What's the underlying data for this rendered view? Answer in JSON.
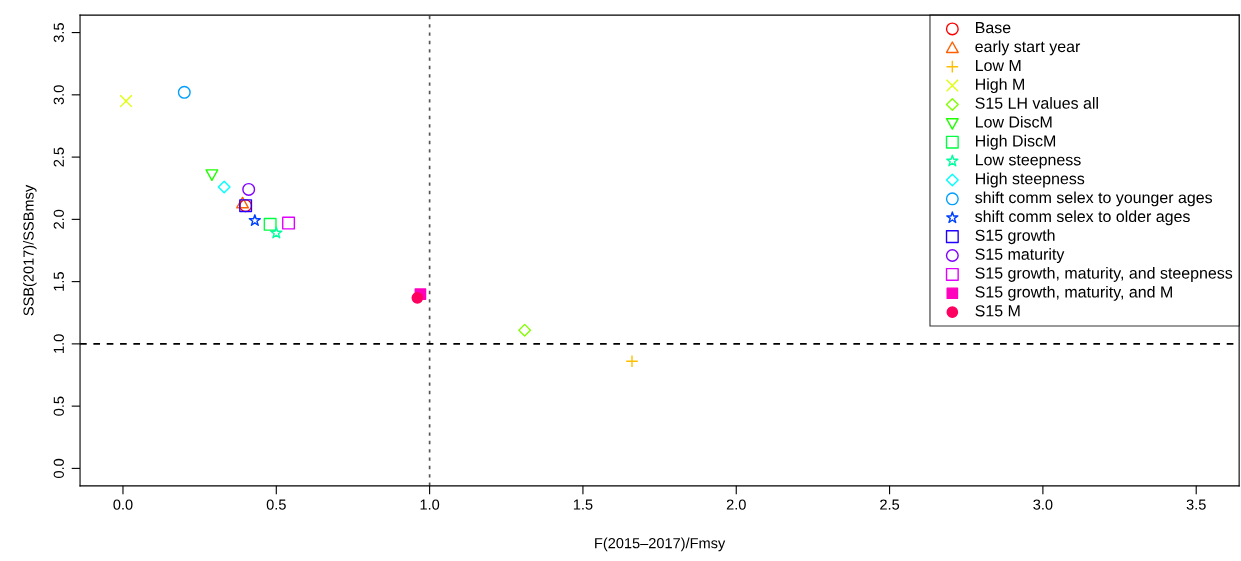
{
  "chart_data": {
    "type": "scatter",
    "xlabel": "F(2015–2017)/Fmsy",
    "ylabel": "SSB(2017)/SSBmsy",
    "xlim": [
      -0.14,
      3.64
    ],
    "ylim": [
      -0.14,
      3.64
    ],
    "xticks": [
      {
        "value": 0,
        "label": "0.0"
      },
      {
        "value": 0.5,
        "label": "0.5"
      },
      {
        "value": 1,
        "label": "1.0"
      },
      {
        "value": 1.5,
        "label": "1.5"
      },
      {
        "value": 2,
        "label": "2.0"
      },
      {
        "value": 2.5,
        "label": "2.5"
      },
      {
        "value": 3,
        "label": "3.0"
      },
      {
        "value": 3.5,
        "label": "3.5"
      }
    ],
    "yticks": [
      {
        "value": 0,
        "label": "0.0"
      },
      {
        "value": 0.5,
        "label": "0.5"
      },
      {
        "value": 1,
        "label": "1.0"
      },
      {
        "value": 1.5,
        "label": "1.5"
      },
      {
        "value": 2,
        "label": "2.0"
      },
      {
        "value": 2.5,
        "label": "2.5"
      },
      {
        "value": 3,
        "label": "3.0"
      },
      {
        "value": 3.5,
        "label": "3.5"
      }
    ],
    "grid": false,
    "legend": "top right",
    "ref_lines": [
      {
        "axis": "x",
        "value": 1,
        "color": "#555555",
        "line_style": "dotted"
      },
      {
        "axis": "y",
        "value": 1,
        "color": "#000000",
        "line_style": "dashed"
      }
    ],
    "series": [
      {
        "name": "Base",
        "color": "#ff0000",
        "marker": "circle",
        "x": [
          0.4
        ],
        "values": [
          2.11
        ]
      },
      {
        "name": "early start year",
        "color": "#ff5f00",
        "marker": "triangle",
        "x": [
          0.39
        ],
        "values": [
          2.13
        ]
      },
      {
        "name": "Low M",
        "color": "#ffbf00",
        "marker": "cross",
        "x": [
          1.66
        ],
        "values": [
          0.86
        ]
      },
      {
        "name": "High M",
        "color": "#dfff00",
        "marker": "x",
        "x": [
          0.01
        ],
        "values": [
          2.95
        ]
      },
      {
        "name": "S15 LH values all",
        "color": "#80ff00",
        "marker": "diamond",
        "x": [
          1.31
        ],
        "values": [
          1.11
        ]
      },
      {
        "name": "Low DiscM",
        "color": "#20ff00",
        "marker": "triangle_down",
        "x": [
          0.29
        ],
        "values": [
          2.36
        ]
      },
      {
        "name": "High DiscM",
        "color": "#00ff40",
        "marker": "square",
        "x": [
          0.48
        ],
        "values": [
          1.96
        ]
      },
      {
        "name": "Low steepness",
        "color": "#00ff9f",
        "marker": "star",
        "x": [
          0.5
        ],
        "values": [
          1.89
        ]
      },
      {
        "name": "High steepness",
        "color": "#00ffff",
        "marker": "diamond",
        "x": [
          0.33
        ],
        "values": [
          2.26
        ]
      },
      {
        "name": "shift comm selex to younger ages",
        "color": "#009fff",
        "marker": "circle",
        "x": [
          0.2
        ],
        "values": [
          3.02
        ]
      },
      {
        "name": "shift comm selex to older ages",
        "color": "#0040ff",
        "marker": "star",
        "x": [
          0.43
        ],
        "values": [
          1.99
        ]
      },
      {
        "name": "S15 growth",
        "color": "#2000ff",
        "marker": "square",
        "x": [
          0.4
        ],
        "values": [
          2.11
        ]
      },
      {
        "name": "S15 maturity",
        "color": "#8000ff",
        "marker": "circle",
        "x": [
          0.41
        ],
        "values": [
          2.24
        ]
      },
      {
        "name": "S15 growth, maturity, and steepness",
        "color": "#df00ff",
        "marker": "square",
        "x": [
          0.54
        ],
        "values": [
          1.97
        ]
      },
      {
        "name": "S15 growth, maturity, and M",
        "color": "#ff00bf",
        "marker": "square_filled",
        "x": [
          0.97
        ],
        "values": [
          1.4
        ]
      },
      {
        "name": "S15 M",
        "color": "#ff0060",
        "marker": "circle_filled",
        "x": [
          0.96
        ],
        "values": [
          1.37
        ]
      }
    ]
  }
}
